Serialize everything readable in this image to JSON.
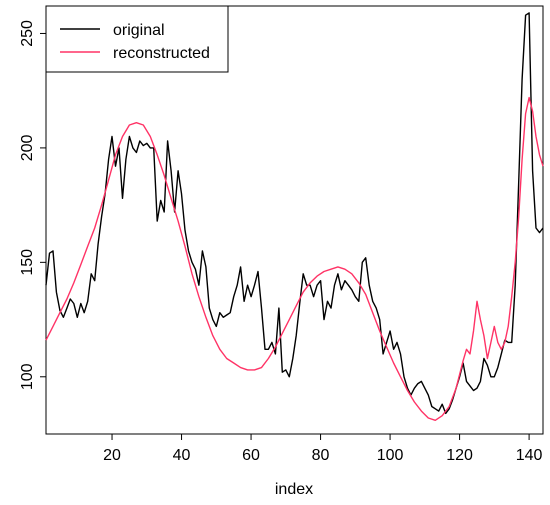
{
  "chart_data": {
    "type": "line",
    "title": "",
    "xlabel": "index",
    "ylabel": "",
    "xlim": [
      1,
      144
    ],
    "ylim": [
      75,
      262
    ],
    "x_ticks": [
      20,
      40,
      60,
      80,
      100,
      120,
      140
    ],
    "y_ticks": [
      100,
      150,
      200,
      250
    ],
    "grid": false,
    "legend_position": "top-left",
    "series": [
      {
        "name": "original",
        "color": "#000000",
        "x": [
          1,
          2,
          3,
          4,
          5,
          6,
          7,
          8,
          9,
          10,
          11,
          12,
          13,
          14,
          15,
          16,
          17,
          18,
          19,
          20,
          21,
          22,
          23,
          24,
          25,
          26,
          27,
          28,
          29,
          30,
          31,
          32,
          33,
          34,
          35,
          36,
          37,
          38,
          39,
          40,
          41,
          42,
          43,
          44,
          45,
          46,
          47,
          48,
          49,
          50,
          51,
          52,
          53,
          54,
          55,
          56,
          57,
          58,
          59,
          60,
          61,
          62,
          63,
          64,
          65,
          66,
          67,
          68,
          69,
          70,
          71,
          72,
          73,
          74,
          75,
          76,
          77,
          78,
          79,
          80,
          81,
          82,
          83,
          84,
          85,
          86,
          87,
          88,
          89,
          90,
          91,
          92,
          93,
          94,
          95,
          96,
          97,
          98,
          99,
          100,
          101,
          102,
          103,
          104,
          105,
          106,
          107,
          108,
          109,
          110,
          111,
          112,
          113,
          114,
          115,
          116,
          117,
          118,
          119,
          120,
          121,
          122,
          123,
          124,
          125,
          126,
          127,
          128,
          129,
          130,
          131,
          132,
          133,
          134,
          135,
          136,
          137,
          138,
          139,
          140,
          141,
          142,
          143,
          144
        ],
        "y": [
          140,
          154,
          155,
          137,
          129,
          126,
          130,
          134,
          132,
          126,
          132,
          128,
          133,
          145,
          142,
          158,
          170,
          180,
          195,
          205,
          192,
          200,
          178,
          195,
          205,
          200,
          198,
          203,
          201,
          202,
          200,
          200,
          168,
          177,
          172,
          203,
          190,
          172,
          190,
          180,
          164,
          155,
          150,
          147,
          140,
          155,
          148,
          130,
          125,
          122,
          128,
          126,
          127,
          128,
          135,
          140,
          148,
          133,
          140,
          135,
          140,
          146,
          130,
          112,
          112,
          115,
          110,
          130,
          102,
          103,
          100,
          108,
          118,
          132,
          145,
          140,
          140,
          135,
          140,
          142,
          125,
          133,
          130,
          140,
          145,
          138,
          142,
          140,
          138,
          135,
          133,
          150,
          152,
          140,
          133,
          130,
          125,
          110,
          115,
          120,
          112,
          115,
          110,
          100,
          95,
          92,
          95,
          97,
          98,
          95,
          92,
          87,
          86,
          85,
          88,
          84,
          86,
          90,
          95,
          100,
          106,
          98,
          96,
          94,
          95,
          98,
          108,
          105,
          100,
          100,
          104,
          110,
          116,
          115,
          115,
          140,
          185,
          230,
          258,
          259,
          190,
          165,
          163,
          165
        ]
      },
      {
        "name": "reconstructed",
        "color": "#ff3366",
        "x": [
          1,
          3,
          5,
          7,
          9,
          11,
          13,
          15,
          17,
          19,
          21,
          23,
          25,
          27,
          29,
          31,
          33,
          35,
          37,
          39,
          41,
          43,
          45,
          47,
          49,
          51,
          53,
          55,
          57,
          59,
          61,
          63,
          65,
          67,
          69,
          71,
          73,
          75,
          77,
          79,
          81,
          83,
          85,
          87,
          89,
          91,
          93,
          95,
          97,
          99,
          101,
          103,
          105,
          107,
          109,
          111,
          113,
          115,
          117,
          119,
          121,
          122,
          123,
          124,
          125,
          126,
          127,
          128,
          129,
          130,
          131,
          132,
          133,
          134,
          135,
          136,
          137,
          138,
          139,
          140,
          141,
          142,
          143,
          144
        ],
        "y": [
          116,
          122,
          128,
          134,
          141,
          149,
          157,
          165,
          175,
          186,
          197,
          205,
          210,
          211,
          210,
          205,
          197,
          188,
          178,
          168,
          157,
          145,
          135,
          126,
          118,
          112,
          108,
          106,
          104,
          103,
          103,
          104,
          108,
          113,
          119,
          125,
          131,
          137,
          141,
          144,
          146,
          147,
          148,
          147,
          145,
          141,
          136,
          128,
          120,
          113,
          106,
          100,
          94,
          89,
          85,
          82,
          81,
          83,
          87,
          95,
          107,
          112,
          110,
          120,
          133,
          125,
          118,
          108,
          115,
          122,
          115,
          112,
          115,
          122,
          135,
          150,
          170,
          195,
          215,
          222,
          216,
          205,
          197,
          192
        ]
      }
    ]
  }
}
